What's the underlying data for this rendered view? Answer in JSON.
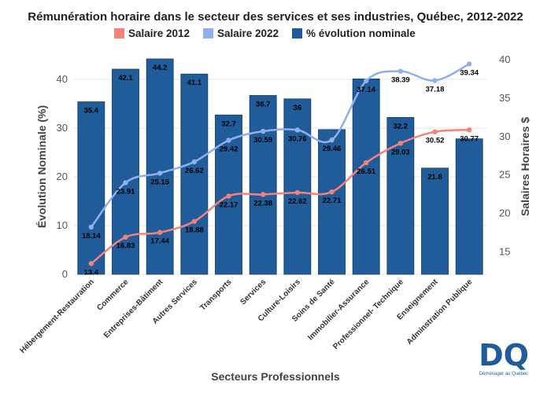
{
  "chart_data": {
    "type": "bar",
    "title": "Rémunération horaire dans le secteur des services et ses industries, Québec, 2012-2022",
    "xlabel": "Secteurs Professionnels",
    "ylabel": "Évolution Nominale (%)",
    "y2label": "Salaires Horaires $",
    "ylim": [
      0,
      45
    ],
    "y2lim": [
      12,
      40.5
    ],
    "yticks": [
      0,
      10,
      20,
      30,
      40
    ],
    "y2ticks": [
      15,
      20,
      25,
      30,
      35,
      40
    ],
    "grid": true,
    "legend_position": "top-center",
    "categories": [
      "Hébergement-Restauration",
      "Commerce",
      "Entreprises-Bâtiment",
      "Autres Services",
      "Transports",
      "Services",
      "Culture-Loisirs",
      "Soins de Santé",
      "Immobilier-Assurance",
      "Professionnel- Technique",
      "Enseignement",
      "Adminstration Publique"
    ],
    "series": [
      {
        "name": "Salaire 2012",
        "type": "line",
        "axis": "right",
        "color": "#f4827a",
        "values": [
          13.4,
          16.83,
          17.44,
          18.88,
          22.17,
          22.38,
          22.62,
          22.71,
          26.51,
          29.03,
          30.52,
          30.77
        ]
      },
      {
        "name": "Salaire 2022",
        "type": "line",
        "axis": "right",
        "color": "#8fb0ec",
        "values": [
          18.14,
          23.91,
          25.15,
          26.62,
          29.42,
          30.59,
          30.76,
          29.46,
          37.14,
          38.39,
          37.18,
          39.34
        ]
      },
      {
        "name": "% évolution nominale",
        "type": "bar",
        "axis": "left",
        "color": "#1f5c99",
        "values": [
          35.4,
          42.1,
          44.2,
          41.1,
          32.7,
          36.7,
          36,
          29.7,
          40.1,
          32.2,
          21.8,
          27.8
        ]
      }
    ],
    "bar_labels": [
      "35.4",
      "42.1",
      "44.2",
      "41.1",
      "32.7",
      "36.7",
      "36",
      "",
      "",
      "32.2",
      "21.8",
      ""
    ],
    "line1_labels": [
      "13.4",
      "16.83",
      "17.44",
      "18.88",
      "22.17",
      "22.38",
      "22.62",
      "22.71",
      "26.51",
      "29.03",
      "30.52",
      "30.77"
    ],
    "line2_labels": [
      "18.14",
      "23.91",
      "25.15",
      "26.62",
      "29.42",
      "30.59",
      "30.76",
      "29.46",
      "37.14",
      "38.39",
      "37.18",
      "39.34"
    ]
  },
  "logo": {
    "letters": "DQ",
    "caption": "Déménager au Québec",
    "color": "#1f5c99"
  }
}
